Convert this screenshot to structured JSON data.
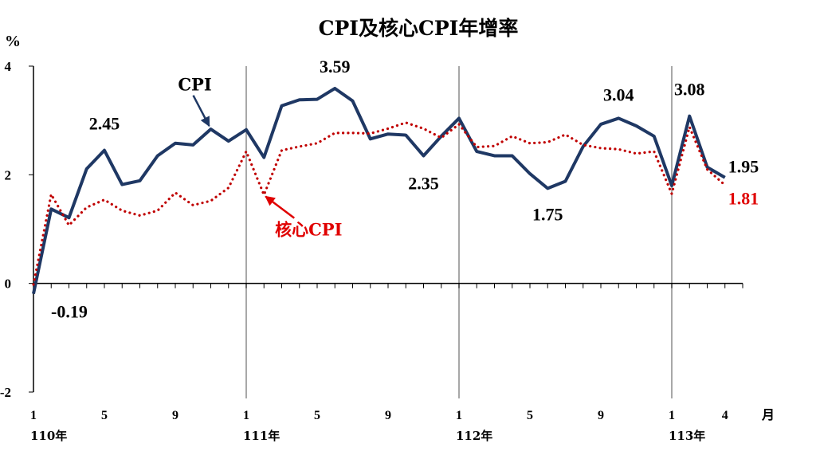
{
  "chart_data": {
    "type": "line",
    "title": "CPI及核心CPI年增率",
    "y_unit": "%",
    "x_unit": "月",
    "ylim": [
      -2,
      4
    ],
    "yticks": [
      -2,
      0,
      2,
      4
    ],
    "grid": false,
    "year_labels": [
      {
        "text": "110年",
        "index": 0
      },
      {
        "text": "111年",
        "index": 12
      },
      {
        "text": "112年",
        "index": 24
      },
      {
        "text": "113年",
        "index": 36
      }
    ],
    "month_ticks": [
      {
        "text": "1",
        "index": 0
      },
      {
        "text": "5",
        "index": 4
      },
      {
        "text": "9",
        "index": 8
      },
      {
        "text": "1",
        "index": 12
      },
      {
        "text": "5",
        "index": 16
      },
      {
        "text": "9",
        "index": 20
      },
      {
        "text": "1",
        "index": 24
      },
      {
        "text": "5",
        "index": 28
      },
      {
        "text": "9",
        "index": 32
      },
      {
        "text": "1",
        "index": 36
      },
      {
        "text": "4",
        "index": 39
      }
    ],
    "year_dividers": [
      12,
      24,
      36
    ],
    "series": [
      {
        "name": "CPI",
        "color": "#1f3864",
        "style": "solid",
        "values": [
          -0.19,
          1.37,
          1.21,
          2.11,
          2.45,
          1.82,
          1.89,
          2.35,
          2.58,
          2.55,
          2.84,
          2.62,
          2.83,
          2.32,
          3.27,
          3.38,
          3.39,
          3.59,
          3.36,
          2.66,
          2.75,
          2.73,
          2.35,
          2.71,
          3.04,
          2.43,
          2.35,
          2.35,
          2.02,
          1.75,
          1.88,
          2.52,
          2.93,
          3.04,
          2.9,
          2.71,
          1.8,
          3.08,
          2.14,
          1.95
        ]
      },
      {
        "name": "核心CPI",
        "color": "#c00000",
        "style": "dotted",
        "values": [
          -0.02,
          1.64,
          1.07,
          1.4,
          1.54,
          1.34,
          1.25,
          1.34,
          1.67,
          1.44,
          1.52,
          1.76,
          2.43,
          1.63,
          2.45,
          2.52,
          2.58,
          2.77,
          2.77,
          2.76,
          2.85,
          2.96,
          2.85,
          2.68,
          2.93,
          2.51,
          2.53,
          2.71,
          2.58,
          2.6,
          2.74,
          2.55,
          2.49,
          2.47,
          2.39,
          2.43,
          1.65,
          2.88,
          2.1,
          1.81
        ]
      }
    ],
    "data_labels": [
      {
        "series": 0,
        "index": 0,
        "text": "-0.19"
      },
      {
        "series": 0,
        "index": 4,
        "text": "2.45"
      },
      {
        "series": 0,
        "index": 17,
        "text": "3.59"
      },
      {
        "series": 0,
        "index": 22,
        "text": "2.35"
      },
      {
        "series": 0,
        "index": 29,
        "text": "1.75"
      },
      {
        "series": 0,
        "index": 33,
        "text": "3.04"
      },
      {
        "series": 0,
        "index": 37,
        "text": "3.08"
      },
      {
        "series": 0,
        "index": 39,
        "text": "1.95"
      },
      {
        "series": 1,
        "index": 39,
        "text": "1.81"
      }
    ],
    "annotations": [
      {
        "text": "CPI",
        "series": 0,
        "arrow_to_index": 10
      },
      {
        "text": "核心CPI",
        "series": 1,
        "arrow_to_index": 13
      }
    ]
  }
}
